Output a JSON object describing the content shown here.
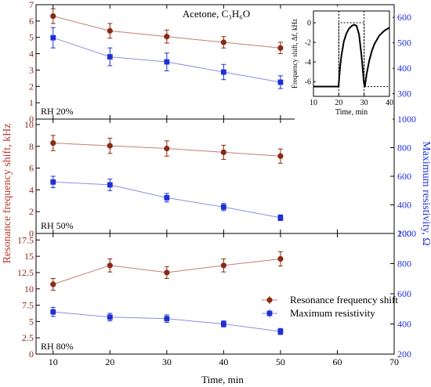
{
  "figure": {
    "title": "Acetone, C₃H₆O",
    "xlabel": "Time, min",
    "ylabel_left": "Resonance frequency shift, kHz",
    "ylabel_right": "Maximum resistivity, Ω"
  },
  "colors": {
    "frequency": "#8b2a12",
    "frequency_line": "#c47f71",
    "resistivity": "#1f2fd6",
    "resistivity_line": "#8a8fe8",
    "right_axis": "#1f2fd6",
    "left_axis_label": "#b5372a",
    "inset_line": "#000000"
  },
  "legend": {
    "frequency": "Resonance frequency shift",
    "resistivity": "Maximum resistivity"
  },
  "chart_data": [
    {
      "type": "scatter",
      "panel_label": "RH 20%",
      "x": [
        10,
        20,
        30,
        40,
        50
      ],
      "xlim": [
        7,
        70
      ],
      "xticks": [
        10,
        20,
        30,
        40,
        50,
        60,
        70
      ],
      "ylim_left": [
        0,
        7
      ],
      "yticks_left": [
        0,
        1,
        2,
        3,
        4,
        5,
        6,
        7
      ],
      "ylim_right": [
        200,
        650
      ],
      "yticks_right": [
        300,
        400,
        500,
        600
      ],
      "series": [
        {
          "name": "Resonance frequency shift",
          "axis": "left",
          "marker": "circle",
          "values": [
            6.3,
            5.4,
            5.05,
            4.7,
            4.35
          ],
          "errors": [
            0.45,
            0.45,
            0.4,
            0.35,
            0.35
          ]
        },
        {
          "name": "Maximum resistivity",
          "axis": "right",
          "marker": "square",
          "values": [
            520,
            445,
            425,
            385,
            345
          ],
          "errors": [
            40,
            35,
            35,
            30,
            25
          ]
        }
      ]
    },
    {
      "type": "scatter",
      "panel_label": "RH 50%",
      "x": [
        10,
        20,
        30,
        40,
        50
      ],
      "xlim": [
        7,
        70
      ],
      "xticks": [
        10,
        20,
        30,
        40,
        50,
        60,
        70
      ],
      "ylim_left": [
        0,
        10.5
      ],
      "yticks_left": [
        0,
        2,
        4,
        6,
        8,
        10
      ],
      "ylim_right": [
        200,
        1000
      ],
      "yticks_right": [
        200,
        400,
        600,
        800,
        1000
      ],
      "series": [
        {
          "name": "Resonance frequency shift",
          "axis": "left",
          "marker": "circle",
          "values": [
            8.3,
            8.05,
            7.8,
            7.45,
            7.1
          ],
          "errors": [
            0.7,
            0.7,
            0.7,
            0.65,
            0.65
          ]
        },
        {
          "name": "Maximum resistivity",
          "axis": "right",
          "marker": "square",
          "values": [
            560,
            540,
            450,
            385,
            310
          ],
          "errors": [
            40,
            40,
            30,
            25,
            20
          ]
        }
      ]
    },
    {
      "type": "scatter",
      "panel_label": "RH 80%",
      "x": [
        10,
        20,
        30,
        40,
        50
      ],
      "xlim": [
        7,
        70
      ],
      "xticks": [
        10,
        20,
        30,
        40,
        50,
        60,
        70
      ],
      "ylim_left": [
        0,
        18.5
      ],
      "yticks_left": [
        0,
        2.5,
        5,
        7.5,
        10,
        12.5,
        15,
        17.5
      ],
      "ylim_right": [
        200,
        1000
      ],
      "yticks_right": [
        200,
        400,
        600,
        800,
        1000
      ],
      "series": [
        {
          "name": "Resonance frequency shift",
          "axis": "left",
          "marker": "circle",
          "values": [
            10.7,
            13.6,
            12.5,
            13.6,
            14.6
          ],
          "errors": [
            0.9,
            1.0,
            0.9,
            1.0,
            1.1
          ]
        },
        {
          "name": "Maximum resistivity",
          "axis": "right",
          "marker": "square",
          "values": [
            480,
            445,
            435,
            400,
            350
          ],
          "errors": [
            30,
            25,
            25,
            20,
            20
          ]
        }
      ]
    },
    {
      "type": "line",
      "role": "inset",
      "xlabel": "Time, min",
      "ylabel": "Frequency shift, Δf, kHz",
      "xlim": [
        10,
        40
      ],
      "xticks": [
        10,
        20,
        30,
        40
      ],
      "ylim": [
        -7.5,
        1.2
      ],
      "yticks": [
        -6,
        -4,
        -2,
        0
      ],
      "reference_levels": [
        -6.5,
        0
      ],
      "reference_times": [
        20,
        30
      ],
      "series": [
        {
          "x": [
            10,
            19.95,
            20,
            20.5,
            21,
            22,
            23,
            24,
            25,
            26,
            27,
            28,
            29,
            29.95,
            30.3,
            31,
            32,
            33,
            34,
            36,
            38,
            40
          ],
          "y": [
            -6.5,
            -6.5,
            -6.2,
            -4.6,
            -3.4,
            -1.9,
            -1.1,
            -0.6,
            -0.35,
            -0.2,
            -0.3,
            -1.2,
            -3.4,
            -6.2,
            -6.5,
            -5.2,
            -3.9,
            -2.9,
            -2.2,
            -1.3,
            -0.8,
            -0.5
          ]
        }
      ]
    }
  ]
}
